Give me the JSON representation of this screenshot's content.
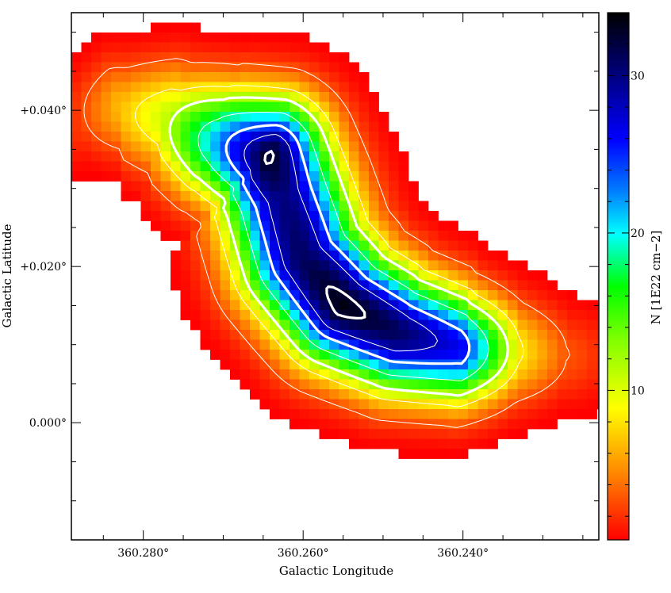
{
  "chart_data": {
    "type": "heatmap",
    "xlabel": "Galactic Longitude",
    "ylabel": "Galactic Latitude",
    "colorbar_label": "N [1E22 cm−2]",
    "xlim": [
      360.289,
      360.223
    ],
    "ylim": [
      -0.015,
      0.0525
    ],
    "x_ticks": [
      {
        "value": 360.28,
        "label": "360.280°"
      },
      {
        "value": 360.26,
        "label": "360.260°"
      },
      {
        "value": 360.24,
        "label": "360.240°"
      }
    ],
    "y_ticks": [
      {
        "value": 0.0,
        "label": "0.000°"
      },
      {
        "value": 0.02,
        "label": "+0.020°"
      },
      {
        "value": 0.04,
        "label": "+0.040°"
      }
    ],
    "colorbar": {
      "range": [
        0.5,
        34.0
      ],
      "ticks": [
        {
          "value": 10,
          "label": "10"
        },
        {
          "value": 20,
          "label": "20"
        },
        {
          "value": 30,
          "label": "30"
        }
      ]
    },
    "grid": false,
    "colormap": [
      "#ff0000",
      "#ff8000",
      "#ffff00",
      "#80ff00",
      "#00ff00",
      "#00ffff",
      "#0080ff",
      "#0000ff",
      "#000080",
      "#000000"
    ],
    "ridge": [
      {
        "l": 360.2885,
        "b": 0.0385,
        "v": 2.0
      },
      {
        "l": 360.283,
        "b": 0.04,
        "v": 6.5
      },
      {
        "l": 360.277,
        "b": 0.039,
        "v": 11.0
      },
      {
        "l": 360.2715,
        "b": 0.0365,
        "v": 20.5
      },
      {
        "l": 360.2645,
        "b": 0.034,
        "v": 33.0
      },
      {
        "l": 360.2625,
        "b": 0.029,
        "v": 30.0
      },
      {
        "l": 360.26,
        "b": 0.021,
        "v": 31.0
      },
      {
        "l": 360.255,
        "b": 0.015,
        "v": 33.5
      },
      {
        "l": 360.248,
        "b": 0.0115,
        "v": 31.0
      },
      {
        "l": 360.24,
        "b": 0.0095,
        "v": 26.0
      },
      {
        "l": 360.233,
        "b": 0.009,
        "v": 8.5
      },
      {
        "l": 360.227,
        "b": 0.0085,
        "v": 3.0
      }
    ],
    "contour_levels": [
      {
        "value": 3,
        "style": "thin"
      },
      {
        "value": 8,
        "style": "thin"
      },
      {
        "value": 12,
        "style": "thick"
      },
      {
        "value": 18,
        "style": "thin"
      },
      {
        "value": 24,
        "style": "thick"
      },
      {
        "value": 28,
        "style": "thin"
      },
      {
        "value": 32.5,
        "style": "thick"
      }
    ]
  }
}
